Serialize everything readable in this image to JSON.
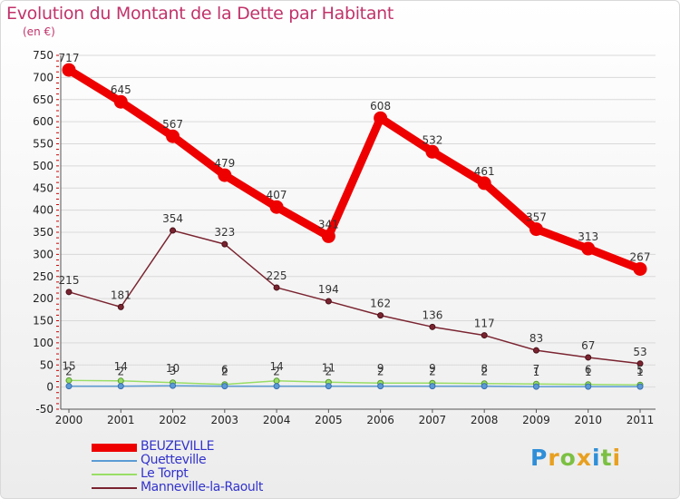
{
  "header": {
    "title": "Evolution du Montant de la Dette par Habitant",
    "subtitle": "(en €)"
  },
  "colors": {
    "title": "#c1336a",
    "legend_text": "#3333cc",
    "grid": "#d9d9d9",
    "axis_tick_red": "#cc0000"
  },
  "chart_data": {
    "type": "line",
    "title": "Evolution du Montant de la Dette par Habitant",
    "subtitle": "(en €)",
    "xlabel": "",
    "ylabel": "",
    "x": [
      "2000",
      "2001",
      "2002",
      "2003",
      "2004",
      "2005",
      "2006",
      "2007",
      "2008",
      "2009",
      "2010",
      "2011"
    ],
    "y_ticks": [
      -50,
      0,
      50,
      100,
      150,
      200,
      250,
      300,
      350,
      400,
      450,
      500,
      550,
      600,
      650,
      700,
      750
    ],
    "ylim": [
      -50,
      750
    ],
    "grid": "horizontal",
    "legend_position": "bottom-left",
    "series": [
      {
        "name": "BEUZEVILLE",
        "color": "#ee0000",
        "values": [
          717,
          645,
          567,
          479,
          407,
          341,
          608,
          532,
          461,
          357,
          313,
          267
        ],
        "labels": [
          "717",
          "645",
          "567",
          "479",
          "407",
          "341",
          "608",
          "532",
          "461",
          "357",
          "313",
          "267"
        ]
      },
      {
        "name": "Quetteville",
        "color": "#5b9bd5",
        "values": [
          2,
          2,
          3,
          2,
          2,
          2,
          2,
          2,
          2,
          1,
          1,
          1
        ],
        "labels": [
          "2",
          "2",
          "3",
          "2",
          "2",
          "2",
          "2",
          "2",
          "2",
          "1",
          "1",
          "1"
        ]
      },
      {
        "name": "Le Torpt",
        "color": "#99dd66",
        "values": [
          15,
          14,
          10,
          6,
          14,
          11,
          9,
          9,
          8,
          7,
          6,
          5
        ],
        "labels": [
          "15",
          "14",
          "10",
          "6",
          "14",
          "11",
          "9",
          "9",
          "8",
          "7",
          "6",
          "5"
        ]
      },
      {
        "name": "Manneville-la-Raoult",
        "color": "#7a2430",
        "values": [
          215,
          181,
          354,
          323,
          225,
          194,
          162,
          136,
          117,
          83,
          67,
          53
        ],
        "labels": [
          "215",
          "181",
          "354",
          "323",
          "225",
          "194",
          "162",
          "136",
          "117",
          "83",
          "67",
          "53"
        ]
      }
    ]
  },
  "logo": {
    "letters": [
      {
        "ch": "P",
        "color": "#2f8fd8"
      },
      {
        "ch": "r",
        "color": "#e8a020"
      },
      {
        "ch": "o",
        "color": "#7cc043"
      },
      {
        "ch": "x",
        "color": "#e8a020"
      },
      {
        "ch": "i",
        "color": "#2f8fd8"
      },
      {
        "ch": "t",
        "color": "#7cc043"
      },
      {
        "ch": "i",
        "color": "#e8a020"
      }
    ]
  }
}
